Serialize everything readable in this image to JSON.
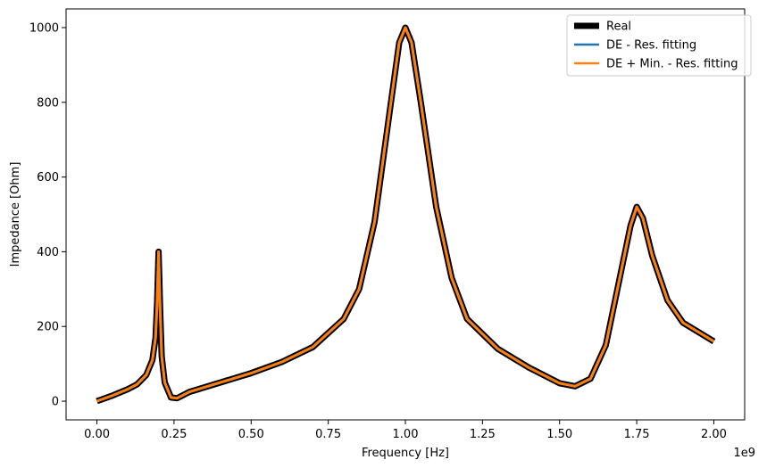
{
  "chart_data": {
    "type": "line",
    "title": "",
    "xlabel": "Frequency [Hz]",
    "ylabel": "Impedance [Ohm]",
    "x_offset_label": "1e9",
    "xlim": [
      -0.1,
      2.1
    ],
    "ylim": [
      -50,
      1050
    ],
    "grid": false,
    "legend_position": "top-right",
    "x_ticks": [
      {
        "value": 0.0,
        "label": "0.00"
      },
      {
        "value": 0.25,
        "label": "0.25"
      },
      {
        "value": 0.5,
        "label": "0.50"
      },
      {
        "value": 0.75,
        "label": "0.75"
      },
      {
        "value": 1.0,
        "label": "1.00"
      },
      {
        "value": 1.25,
        "label": "1.25"
      },
      {
        "value": 1.5,
        "label": "1.50"
      },
      {
        "value": 1.75,
        "label": "1.75"
      },
      {
        "value": 2.0,
        "label": "2.00"
      }
    ],
    "y_ticks": [
      {
        "value": 0,
        "label": "0"
      },
      {
        "value": 200,
        "label": "200"
      },
      {
        "value": 400,
        "label": "400"
      },
      {
        "value": 600,
        "label": "600"
      },
      {
        "value": 800,
        "label": "800"
      },
      {
        "value": 1000,
        "label": "1000"
      }
    ],
    "x": [
      0.0,
      0.05,
      0.1,
      0.13,
      0.16,
      0.18,
      0.19,
      0.195,
      0.2,
      0.205,
      0.21,
      0.22,
      0.24,
      0.26,
      0.3,
      0.4,
      0.5,
      0.6,
      0.7,
      0.8,
      0.85,
      0.9,
      0.95,
      0.98,
      1.0,
      1.02,
      1.05,
      1.1,
      1.15,
      1.2,
      1.3,
      1.4,
      1.5,
      1.55,
      1.6,
      1.65,
      1.7,
      1.73,
      1.75,
      1.77,
      1.8,
      1.85,
      1.9,
      2.0
    ],
    "series": [
      {
        "name": "Real",
        "color": "#000000",
        "y": [
          0,
          15,
          32,
          45,
          70,
          110,
          170,
          260,
          400,
          240,
          120,
          50,
          10,
          8,
          25,
          50,
          75,
          105,
          145,
          220,
          300,
          480,
          780,
          960,
          1000,
          960,
          800,
          520,
          330,
          220,
          140,
          90,
          48,
          40,
          60,
          150,
          350,
          470,
          520,
          490,
          390,
          270,
          210,
          160
        ]
      },
      {
        "name": "DE - Res. fitting",
        "color": "#1f77b4",
        "y": [
          0,
          15,
          32,
          45,
          70,
          110,
          170,
          260,
          400,
          240,
          120,
          50,
          10,
          8,
          25,
          50,
          75,
          105,
          145,
          220,
          300,
          480,
          780,
          960,
          1000,
          960,
          800,
          520,
          330,
          220,
          140,
          90,
          48,
          40,
          60,
          150,
          350,
          470,
          520,
          490,
          390,
          270,
          210,
          160
        ]
      },
      {
        "name": "DE + Min. - Res. fitting",
        "color": "#ff7f0e",
        "y": [
          0,
          15,
          32,
          45,
          70,
          110,
          170,
          260,
          400,
          240,
          120,
          50,
          10,
          8,
          25,
          50,
          75,
          105,
          145,
          220,
          300,
          480,
          780,
          960,
          1000,
          960,
          800,
          520,
          330,
          220,
          140,
          90,
          48,
          40,
          60,
          150,
          350,
          470,
          520,
          490,
          390,
          270,
          210,
          160
        ]
      }
    ]
  }
}
